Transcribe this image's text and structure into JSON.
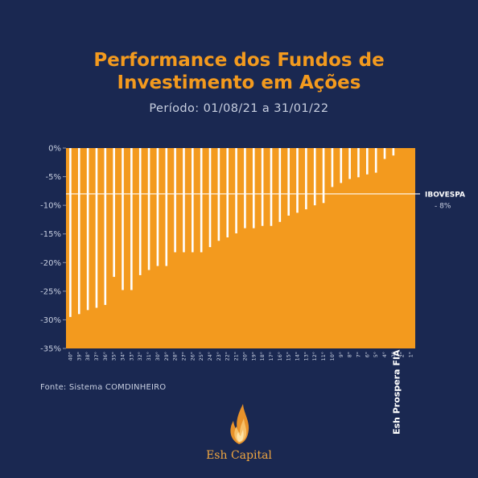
{
  "header": {
    "title_line1": "Performance dos Fundos de",
    "title_line2": "Investimento em Ações",
    "subtitle": "Período: 01/08/21 a 31/01/22"
  },
  "footer": {
    "source": "Fonte: Sistema COMDINHEIRO",
    "brand": "Esh Capital"
  },
  "colors": {
    "background": "#1a2851",
    "bar": "#f39a1e",
    "gap": "#ffffff",
    "reference_line": "#ffffff",
    "text": "#c8cfe0"
  },
  "icons": {
    "logo": "flame-logo-icon"
  },
  "chart_data": {
    "type": "bar",
    "title": "Performance dos Fundos de Investimento em Ações",
    "subtitle": "Período: 01/08/21 a 31/01/22",
    "xlabel": "",
    "ylabel": "",
    "ylim": [
      -35,
      0
    ],
    "yticks": [
      "0%",
      "-5%",
      "-10%",
      "-15%",
      "-20%",
      "-25%",
      "-30%",
      "-35%"
    ],
    "ytick_values": [
      0,
      -5,
      -10,
      -15,
      -20,
      -25,
      -30,
      -35
    ],
    "grid": false,
    "categories": [
      "40°",
      "39°",
      "38°",
      "37°",
      "36°",
      "35°",
      "34°",
      "33°",
      "32°",
      "31°",
      "30°",
      "29°",
      "28°",
      "27°",
      "26°",
      "25°",
      "24°",
      "23°",
      "22°",
      "21°",
      "20°",
      "19°",
      "18°",
      "17°",
      "16°",
      "15°",
      "14°",
      "13°",
      "12°",
      "11°",
      "10°",
      "9°",
      "8°",
      "7°",
      "6°",
      "5°",
      "4°",
      "3°",
      "2°",
      "1°"
    ],
    "values": [
      -29.5,
      -29.0,
      -28.3,
      -27.9,
      -27.4,
      -22.5,
      -24.8,
      -24.8,
      -22.2,
      -21.3,
      -20.6,
      -20.6,
      -18.2,
      -18.2,
      -18.2,
      -18.2,
      -17.3,
      -16.2,
      -15.6,
      -14.9,
      -14.0,
      -14.0,
      -13.6,
      -13.6,
      -12.9,
      -11.8,
      -11.3,
      -10.7,
      -10.0,
      -9.6,
      -6.8,
      -6.1,
      -5.4,
      -5.1,
      -4.6,
      -4.3,
      -1.9,
      -1.3,
      0,
      0
    ],
    "reference": {
      "name": "IBOVESPA",
      "label": "- 8%",
      "value": -8
    },
    "highlight": {
      "category": "1°",
      "label": "Esh Prospera FIA"
    }
  }
}
